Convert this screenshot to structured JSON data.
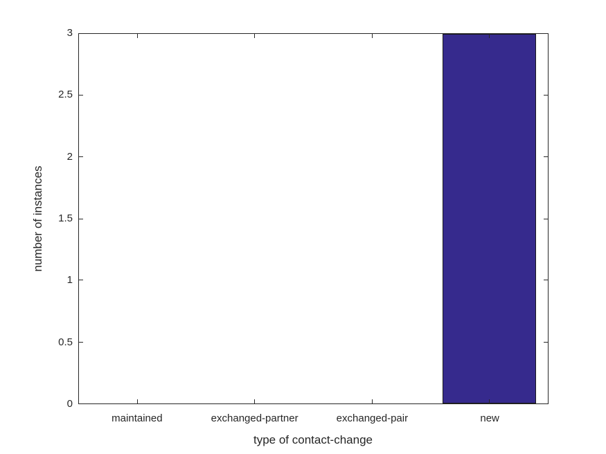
{
  "chart_data": {
    "type": "bar",
    "title": "",
    "categories": [
      "maintained",
      "exchanged-partner",
      "exchanged-pair",
      "new"
    ],
    "values": [
      0,
      0,
      0,
      3
    ],
    "xlabel": "type of contact-change",
    "ylabel": "number of instances",
    "ylim": [
      0,
      3
    ],
    "yticks": [
      0,
      0.5,
      1,
      1.5,
      2,
      2.5,
      3
    ],
    "ytick_labels": [
      "0",
      "0.5",
      "1",
      "1.5",
      "2",
      "2.5",
      "3"
    ],
    "bar_width_fraction": 0.8,
    "grid": false,
    "legend": false,
    "box": true,
    "tick_direction": "in",
    "bar_color": "#362A8D",
    "bar_edge_color": "#1A1A1A",
    "axis_color": "#262626",
    "text_color": "#262626",
    "background_color": "#FFFFFF"
  }
}
